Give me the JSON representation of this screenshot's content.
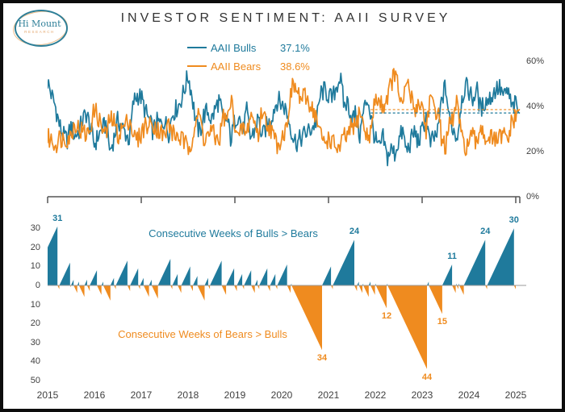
{
  "logo": {
    "line1": "Hi Mount",
    "line2": "RESEARCH"
  },
  "title": "INVESTOR SENTIMENT: AAII SURVEY",
  "colors": {
    "bulls": "#1F7A9C",
    "bears": "#EF8B1F",
    "axis": "#555555",
    "zero_line": "#9a9a9a",
    "text": "#404040"
  },
  "legend": [
    {
      "label": "AAII Bulls",
      "value": "37.1%",
      "color": "#1F7A9C"
    },
    {
      "label": "AAII Bears",
      "value": "38.6%",
      "color": "#EF8B1F"
    }
  ],
  "chart_data": [
    {
      "type": "line",
      "title": "AAII Bulls vs Bears weekly survey",
      "x_start_year": 2015,
      "x_end_year": 2025.1,
      "x_tick_years": [
        "2015",
        "2017",
        "2019",
        "2021",
        "2023",
        "2025"
      ],
      "ylim": [
        0,
        65
      ],
      "y_ticks": [
        {
          "v": 60,
          "label": "60%"
        },
        {
          "v": 40,
          "label": "40%"
        },
        {
          "v": 20,
          "label": "20%"
        },
        {
          "v": 0,
          "label": "0%"
        }
      ],
      "legend_position": "top-center",
      "grid": false,
      "points_per_year": 12,
      "series": [
        {
          "name": "AAII Bulls",
          "color": "#1F7A9C",
          "current_value": 37.1,
          "monthly_values": [
            51,
            45,
            40,
            32,
            27,
            25,
            31,
            27,
            29,
            34,
            37,
            30,
            23,
            27,
            30,
            32,
            20,
            26,
            34,
            31,
            28,
            25,
            42,
            45,
            44,
            38,
            34,
            29,
            33,
            32,
            34,
            28,
            37,
            39,
            42,
            47,
            54,
            45,
            33,
            28,
            36,
            38,
            34,
            39,
            43,
            33,
            35,
            25,
            34,
            37,
            28,
            38,
            26,
            29,
            35,
            26,
            31,
            33,
            39,
            43,
            41,
            39,
            33,
            26,
            24,
            26,
            28,
            29,
            31,
            34,
            46,
            47,
            45,
            43,
            49,
            53,
            40,
            42,
            34,
            37,
            27,
            38,
            44,
            34,
            25,
            21,
            26,
            17,
            21,
            19,
            25,
            29,
            20,
            24,
            29,
            24,
            29,
            36,
            23,
            26,
            28,
            43,
            49,
            34,
            30,
            26,
            42,
            49,
            47,
            43,
            48,
            38,
            42,
            43,
            45,
            48,
            48,
            44,
            47,
            39,
            41,
            37.1
          ]
        },
        {
          "name": "AAII Bears",
          "color": "#EF8B1F",
          "current_value": 38.6,
          "monthly_values": [
            26,
            25,
            23,
            26,
            26,
            26,
            27,
            33,
            30,
            29,
            27,
            31,
            39,
            35,
            30,
            27,
            35,
            33,
            27,
            30,
            32,
            35,
            27,
            25,
            28,
            32,
            31,
            33,
            30,
            29,
            26,
            33,
            28,
            27,
            26,
            24,
            21,
            26,
            34,
            36,
            26,
            27,
            29,
            26,
            25,
            36,
            33,
            43,
            33,
            25,
            31,
            27,
            37,
            33,
            27,
            39,
            33,
            31,
            26,
            23,
            27,
            29,
            42,
            50,
            46,
            43,
            44,
            42,
            39,
            34,
            27,
            24,
            26,
            24,
            22,
            21,
            27,
            26,
            32,
            30,
            39,
            31,
            26,
            30,
            44,
            42,
            40,
            44,
            50,
            55,
            47,
            38,
            52,
            45,
            39,
            41,
            41,
            29,
            44,
            38,
            39,
            26,
            22,
            31,
            35,
            43,
            26,
            22,
            24,
            27,
            22,
            33,
            26,
            27,
            25,
            25,
            26,
            27,
            25,
            33,
            35,
            38.6
          ]
        }
      ],
      "dashed_reference_lines": [
        {
          "value": 38.6,
          "color": "#EF8B1F",
          "from_year": 2021.9
        },
        {
          "value": 37.1,
          "color": "#1F7A9C",
          "from_year": 2021.9
        }
      ]
    },
    {
      "type": "area",
      "title": "Consecutive weeks streaks",
      "caption_bulls": "Consecutive Weeks of Bulls > Bears",
      "caption_bears": "Consecutive Weeks of Bears > Bulls",
      "start_year": 2014.617,
      "weeks_per_year": 52.2,
      "ylim": [
        -50,
        35
      ],
      "y_ticks": [
        {
          "v": 30,
          "label": "30"
        },
        {
          "v": 20,
          "label": "20"
        },
        {
          "v": 10,
          "label": "10"
        },
        {
          "v": 0,
          "label": "0"
        },
        {
          "v": -10,
          "label": "10"
        },
        {
          "v": -20,
          "label": "20"
        },
        {
          "v": -30,
          "label": "30"
        },
        {
          "v": -40,
          "label": "40"
        },
        {
          "v": -50,
          "label": "50"
        }
      ],
      "x_tick_years": [
        "2015",
        "2016",
        "2017",
        "2018",
        "2019",
        "2020",
        "2021",
        "2022",
        "2023",
        "2024",
        "2025"
      ],
      "streaks_weeks_labeled": [
        [
          31,
          1
        ],
        [
          -2,
          0
        ],
        [
          12,
          0
        ],
        [
          -1,
          0
        ],
        [
          3,
          0
        ],
        [
          -4,
          0
        ],
        [
          2,
          0
        ],
        [
          -6,
          0
        ],
        [
          3,
          0
        ],
        [
          -3,
          0
        ],
        [
          8,
          0
        ],
        [
          -5,
          0
        ],
        [
          2,
          0
        ],
        [
          -8,
          0
        ],
        [
          4,
          0
        ],
        [
          -2,
          0
        ],
        [
          13,
          0
        ],
        [
          -3,
          0
        ],
        [
          9,
          0
        ],
        [
          -2,
          0
        ],
        [
          4,
          0
        ],
        [
          -6,
          0
        ],
        [
          3,
          0
        ],
        [
          -7,
          0
        ],
        [
          14,
          0
        ],
        [
          -2,
          0
        ],
        [
          6,
          0
        ],
        [
          -4,
          0
        ],
        [
          10,
          0
        ],
        [
          -3,
          0
        ],
        [
          5,
          0
        ],
        [
          -8,
          0
        ],
        [
          4,
          0
        ],
        [
          -2,
          0
        ],
        [
          13,
          0
        ],
        [
          -5,
          0
        ],
        [
          9,
          0
        ],
        [
          -3,
          0
        ],
        [
          6,
          0
        ],
        [
          -2,
          0
        ],
        [
          8,
          0
        ],
        [
          -4,
          0
        ],
        [
          3,
          0
        ],
        [
          -2,
          0
        ],
        [
          9,
          0
        ],
        [
          -3,
          0
        ],
        [
          6,
          0
        ],
        [
          -2,
          0
        ],
        [
          11,
          0
        ],
        [
          -4,
          0
        ],
        [
          1,
          0
        ],
        [
          -34,
          1
        ],
        [
          10,
          0
        ],
        [
          -2,
          0
        ],
        [
          24,
          1
        ],
        [
          -3,
          0
        ],
        [
          2,
          0
        ],
        [
          -4,
          0
        ],
        [
          1,
          0
        ],
        [
          -6,
          0
        ],
        [
          2,
          0
        ],
        [
          -5,
          0
        ],
        [
          1,
          0
        ],
        [
          -12,
          1
        ],
        [
          1,
          0
        ],
        [
          -44,
          1
        ],
        [
          2,
          0
        ],
        [
          -15,
          1
        ],
        [
          11,
          1
        ],
        [
          -4,
          0
        ],
        [
          1,
          0
        ],
        [
          -2,
          0
        ],
        [
          1,
          0
        ],
        [
          -5,
          0
        ],
        [
          24,
          1
        ],
        [
          -2,
          0
        ],
        [
          30,
          1
        ],
        [
          -2,
          0
        ]
      ]
    }
  ]
}
